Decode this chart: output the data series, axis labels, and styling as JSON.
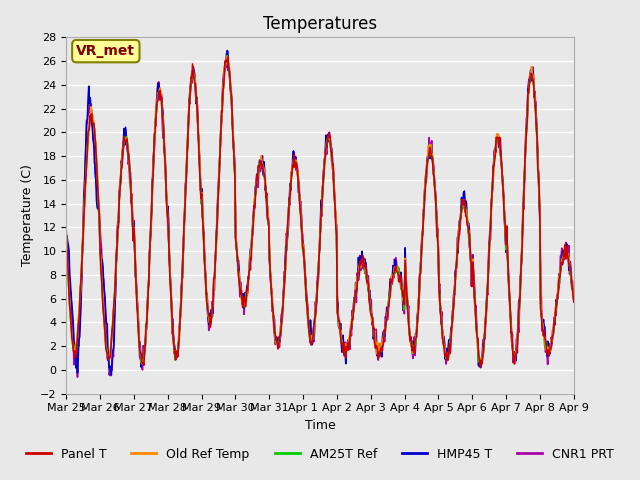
{
  "title": "Temperatures",
  "xlabel": "Time",
  "ylabel": "Temperature (C)",
  "ylim": [
    -2,
    28
  ],
  "yticks": [
    -2,
    0,
    2,
    4,
    6,
    8,
    10,
    12,
    14,
    16,
    18,
    20,
    22,
    24,
    26,
    28
  ],
  "annotation_text": "VR_met",
  "annotation_box_color": "#ffff99",
  "annotation_border_color": "#808000",
  "annotation_text_color": "#800000",
  "bg_color": "#e8e8e8",
  "plot_bg_color": "#e8e8e8",
  "grid_color": "#ffffff",
  "line_colors": {
    "Panel T": "#cc0000",
    "Old Ref Temp": "#ff8800",
    "AM25T Ref": "#00cc00",
    "HMP45 T": "#0000cc",
    "CNR1 PRT": "#aa00aa"
  },
  "line_widths": {
    "Panel T": 1.2,
    "Old Ref Temp": 1.2,
    "AM25T Ref": 1.2,
    "HMP45 T": 1.2,
    "CNR1 PRT": 1.2
  },
  "n_days": 15,
  "pts_per_day": 48,
  "xtick_labels": [
    "Mar 25",
    "Mar 26",
    "Mar 27",
    "Mar 28",
    "Mar 29",
    "Mar 30",
    "Mar 31",
    "Apr 1",
    "Apr 2",
    "Apr 3",
    "Apr 4",
    "Apr 5",
    "Apr 6",
    "Apr 7",
    "Apr 8",
    "Apr 9"
  ],
  "title_fontsize": 12,
  "axis_fontsize": 9,
  "tick_fontsize": 8,
  "legend_fontsize": 9
}
